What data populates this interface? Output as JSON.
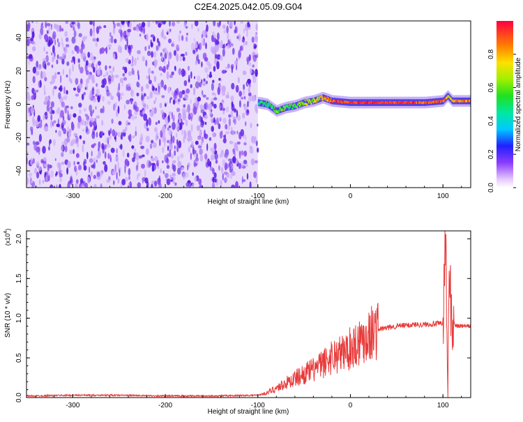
{
  "title": "C2E4.2025.042.05.09.G04",
  "chart_data": [
    {
      "type": "heatmap",
      "xlabel": "Height of straight line (km)",
      "ylabel": "Frequency (Hz)",
      "xlim": [
        -350,
        130
      ],
      "ylim": [
        -50,
        50
      ],
      "xticks": [
        -300,
        -200,
        -100,
        0,
        100
      ],
      "yticks": [
        -40,
        -20,
        0,
        20,
        40
      ],
      "noise_region_x": [
        -350,
        -100
      ],
      "signal_track": {
        "x": [
          -100,
          -90,
          -80,
          -70,
          -60,
          -50,
          -40,
          -30,
          -20,
          0,
          20,
          40,
          60,
          80,
          100,
          105,
          110,
          130
        ],
        "freq_hz": [
          1,
          0,
          -4,
          -2,
          -1,
          1,
          2,
          4,
          2,
          1,
          1,
          1,
          1,
          1,
          2,
          5,
          2,
          2
        ],
        "amplitude": [
          0.45,
          0.5,
          0.6,
          0.55,
          0.6,
          0.65,
          0.7,
          0.75,
          0.9,
          0.95,
          0.95,
          0.95,
          0.95,
          0.9,
          0.9,
          0.7,
          0.85,
          0.85
        ]
      },
      "grid": false,
      "colorbar": {
        "label": "Normalized spectral amplitude",
        "range": [
          0,
          1
        ],
        "ticks": [
          "0.0",
          "0.2",
          "0.4",
          "0.6",
          "0.8"
        ],
        "colormap": "rainbow-white-to-red"
      }
    },
    {
      "type": "line",
      "xlabel": "Height of straight line (km)",
      "ylabel": "SNR (10 * v/v)",
      "y_multiplier": "(x10",
      "y_multiplier_exp": "4",
      "y_multiplier_close": ")",
      "xlim": [
        -350,
        130
      ],
      "ylim": [
        0,
        2.1
      ],
      "xticks": [
        -300,
        -200,
        -100,
        0,
        100
      ],
      "yticks": [
        "0.0",
        "0.5",
        "1.0",
        "1.5",
        "2.0"
      ],
      "color": "#e83a3a",
      "series": [
        {
          "x": [
            -350,
            -300,
            -250,
            -200,
            -150,
            -100,
            -90,
            -80,
            -70,
            -60,
            -50,
            -40,
            -30,
            -20,
            -10,
            0,
            10,
            20,
            30,
            40,
            50,
            60,
            70,
            80,
            90,
            100,
            103,
            105,
            107,
            110,
            115,
            130
          ],
          "values": [
            0.02,
            0.03,
            0.03,
            0.02,
            0.02,
            0.03,
            0.06,
            0.12,
            0.18,
            0.24,
            0.3,
            0.35,
            0.42,
            0.52,
            0.55,
            0.62,
            0.72,
            0.8,
            0.86,
            0.88,
            0.9,
            0.91,
            0.92,
            0.92,
            0.93,
            0.93,
            2.05,
            0.1,
            1.45,
            0.95,
            0.9,
            0.9
          ]
        }
      ]
    }
  ]
}
